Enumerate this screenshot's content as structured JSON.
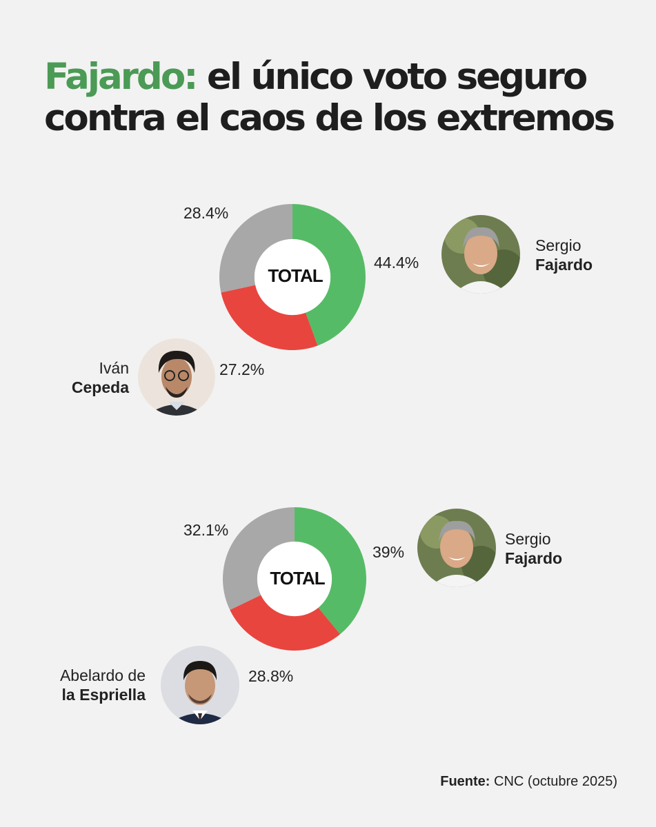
{
  "headline": {
    "highlight": "Fajardo:",
    "rest": " el único voto seguro contra el caos  de los extremos"
  },
  "colors": {
    "fajardo": "#56bb66",
    "opponent": "#e8453f",
    "other": "#a8a8a8",
    "highlight": "#4b9a55"
  },
  "chart_data": [
    {
      "type": "pie",
      "center_label": "TOTAL",
      "slices": [
        {
          "label": "Sergio Fajardo",
          "value": 44.4,
          "display": "44.4%",
          "color": "#56bb66"
        },
        {
          "label": "Iván Cepeda",
          "value": 27.2,
          "display": "27.2%",
          "color": "#e8453f"
        },
        {
          "label": "",
          "value": 28.4,
          "display": "28.4%",
          "color": "#a8a8a8"
        }
      ]
    },
    {
      "type": "pie",
      "center_label": "TOTAL",
      "slices": [
        {
          "label": "Sergio Fajardo",
          "value": 39,
          "display": "39%",
          "color": "#56bb66"
        },
        {
          "label": "Abelardo de la Espriella",
          "value": 28.8,
          "display": "28.8%",
          "color": "#e8453f"
        },
        {
          "label": "",
          "value": 32.1,
          "display": "32.1%",
          "color": "#a8a8a8"
        }
      ]
    }
  ],
  "candidates": {
    "fajardo": {
      "first": "Sergio",
      "last": "Fajardo"
    },
    "cepeda": {
      "first": "Iván",
      "last": "Cepeda"
    },
    "espriella": {
      "first": "Abelardo de",
      "last": "la Espriella"
    }
  },
  "source": {
    "label": "Fuente:",
    "text": " CNC (octubre 2025)"
  }
}
